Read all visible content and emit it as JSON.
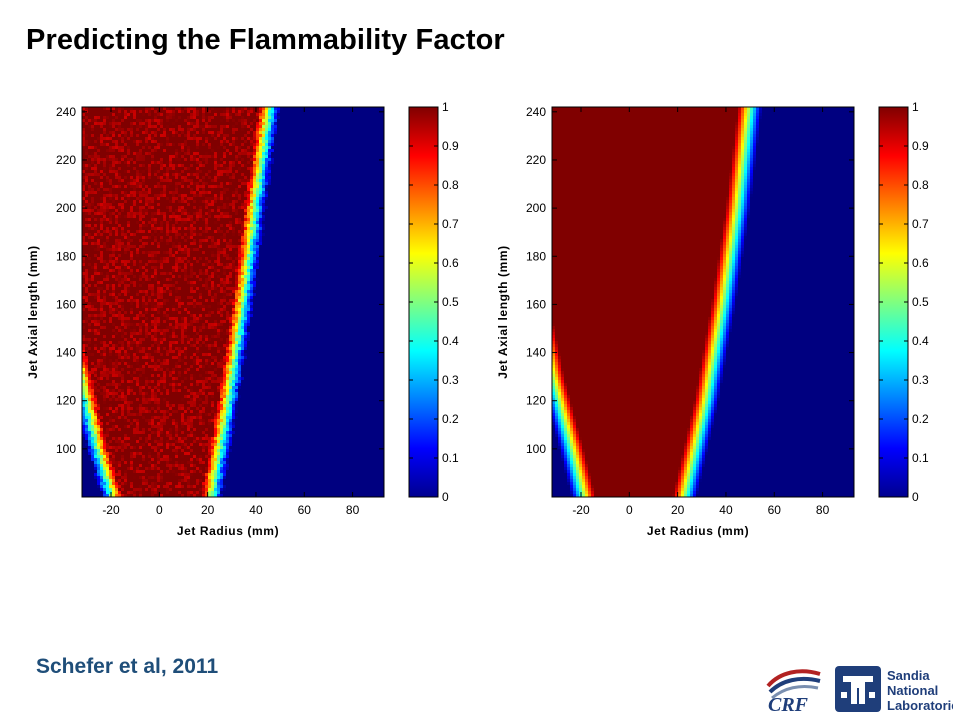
{
  "slide": {
    "title": "Predicting the Flammability Factor",
    "citation": "Schefer et al, 2011"
  },
  "logos": {
    "crf": {
      "text": "CRF"
    },
    "sandia": {
      "lines": [
        "Sandia",
        "National",
        "Laboratories"
      ]
    }
  },
  "chart_data": [
    {
      "type": "heatmap",
      "xlabel": "Jet Radius (mm)",
      "ylabel": "Jet Axial length (mm)",
      "xlim": [
        -32,
        93
      ],
      "ylim": [
        80,
        242
      ],
      "xticks": [
        -20,
        0,
        20,
        40,
        60,
        80
      ],
      "yticks": [
        100,
        120,
        140,
        160,
        180,
        200,
        220,
        240
      ],
      "colormap": "jet",
      "colorbar": {
        "min": 0,
        "max": 1,
        "ticks": [
          0,
          0.1,
          0.2,
          0.3,
          0.4,
          0.5,
          0.6,
          0.7,
          0.8,
          0.9,
          1
        ]
      },
      "noise": true,
      "field": {
        "description_values": "flammability factor ~1 inside jet core, falling to 0 at jet edges",
        "left_edge": [
          {
            "y": 80,
            "x": -15
          },
          {
            "y": 100,
            "x": -21
          },
          {
            "y": 130,
            "x": -28
          },
          {
            "y": 165,
            "x": -36
          },
          {
            "y": 200,
            "x": -44
          },
          {
            "y": 242,
            "x": -52
          }
        ],
        "right_edge": [
          {
            "y": 80,
            "x": 17
          },
          {
            "y": 120,
            "x": 24
          },
          {
            "y": 160,
            "x": 30
          },
          {
            "y": 200,
            "x": 35
          },
          {
            "y": 242,
            "x": 41
          }
        ],
        "edge_width_mm": 9
      }
    },
    {
      "type": "heatmap",
      "xlabel": "Jet Radius (mm)",
      "ylabel": "Jet Axial length (mm)",
      "xlim": [
        -32,
        93
      ],
      "ylim": [
        80,
        242
      ],
      "xticks": [
        -20,
        0,
        20,
        40,
        60,
        80
      ],
      "yticks": [
        100,
        120,
        140,
        160,
        180,
        200,
        220,
        240
      ],
      "colormap": "jet",
      "colorbar": {
        "min": 0,
        "max": 1,
        "ticks": [
          0,
          0.1,
          0.2,
          0.3,
          0.4,
          0.5,
          0.6,
          0.7,
          0.8,
          0.9,
          1
        ]
      },
      "noise": false,
      "field": {
        "description_values": "model prediction of flammability factor",
        "left_edge": [
          {
            "y": 80,
            "x": -14
          },
          {
            "y": 100,
            "x": -19
          },
          {
            "y": 130,
            "x": -27
          },
          {
            "y": 165,
            "x": -34
          },
          {
            "y": 200,
            "x": -41
          },
          {
            "y": 242,
            "x": -50
          }
        ],
        "right_edge": [
          {
            "y": 80,
            "x": 18
          },
          {
            "y": 120,
            "x": 27
          },
          {
            "y": 160,
            "x": 34
          },
          {
            "y": 200,
            "x": 40
          },
          {
            "y": 242,
            "x": 45
          }
        ],
        "edge_width_mm": 10
      }
    }
  ]
}
